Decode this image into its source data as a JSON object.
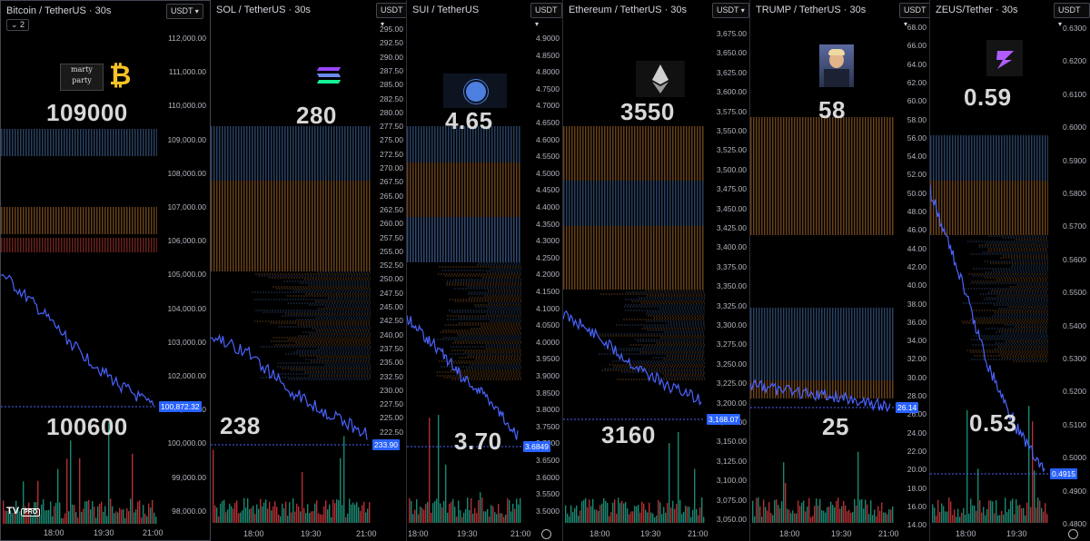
{
  "panels": [
    {
      "key": "btc",
      "title": "Bitcoin / TetherUS · 30s",
      "currency": "USDT",
      "collapse_label": "2",
      "ticks": [
        "112,000.00",
        "111,000.00",
        "110,000.00",
        "109,000.00",
        "108,000.00",
        "107,000.00",
        "106,000.00",
        "105,000.00",
        "104,000.00",
        "103,000.00",
        "102,000.00",
        "101,000.00",
        "100,000.00",
        "99,000.00",
        "98,000.00"
      ],
      "price_tag": "100,872.32",
      "upper_label": "109000",
      "lower_label": "100600",
      "times": [
        "18:00",
        "19:30",
        "21:00"
      ],
      "logo_text": "marty party",
      "watermark": "TV PRO"
    },
    {
      "key": "sol",
      "title": "SOL / TetherUS · 30s",
      "currency": "USDT",
      "ticks": [
        "295.00",
        "292.50",
        "290.00",
        "287.50",
        "285.00",
        "282.50",
        "280.00",
        "277.50",
        "275.00",
        "272.50",
        "270.00",
        "267.50",
        "265.00",
        "262.50",
        "260.00",
        "257.50",
        "255.00",
        "252.50",
        "250.00",
        "247.50",
        "245.00",
        "242.50",
        "240.00",
        "237.50",
        "235.00",
        "232.50",
        "230.00",
        "227.50",
        "225.00",
        "222.50"
      ],
      "price_tag": "233.90",
      "upper_label": "280",
      "lower_label": "238",
      "times": [
        "18:00",
        "19:30",
        "21:00"
      ]
    },
    {
      "key": "sui",
      "title": "SUI / TetherUS",
      "currency": "USDT",
      "ticks": [
        "4.9000",
        "4.8500",
        "4.8000",
        "4.7500",
        "4.7000",
        "4.6500",
        "4.6000",
        "4.5500",
        "4.5000",
        "4.4500",
        "4.4000",
        "4.3500",
        "4.3000",
        "4.2500",
        "4.2000",
        "4.1500",
        "4.1000",
        "4.0500",
        "4.0000",
        "3.9500",
        "3.9000",
        "3.8500",
        "3.8000",
        "3.7500",
        "3.7000",
        "3.6500",
        "3.6000",
        "3.5500",
        "3.5000"
      ],
      "price_tag": "3.6849",
      "upper_label": "4.65",
      "lower_label": "3.70",
      "times": [
        "18:00",
        "19:30",
        "21:00"
      ]
    },
    {
      "key": "eth",
      "title": "Ethereum / TetherUS · 30s",
      "currency": "USDT",
      "ticks": [
        "3,675.00",
        "3,650.00",
        "3,625.00",
        "3,600.00",
        "3,575.00",
        "3,550.00",
        "3,525.00",
        "3,500.00",
        "3,475.00",
        "3,450.00",
        "3,425.00",
        "3,400.00",
        "3,375.00",
        "3,350.00",
        "3,325.00",
        "3,300.00",
        "3,275.00",
        "3,250.00",
        "3,225.00",
        "3,200.00",
        "3,175.00",
        "3,150.00",
        "3,125.00",
        "3,100.00",
        "3,075.00",
        "3,050.00"
      ],
      "price_tag": "3,168.07",
      "upper_label": "3550",
      "lower_label": "3160",
      "times": [
        "18:00",
        "19:30",
        "21:00"
      ]
    },
    {
      "key": "trump",
      "title": "TRUMP / TetherUS · 30s",
      "currency": "USDT",
      "ticks": [
        "68.00",
        "66.00",
        "64.00",
        "62.00",
        "60.00",
        "58.00",
        "56.00",
        "54.00",
        "52.00",
        "50.00",
        "48.00",
        "46.00",
        "44.00",
        "42.00",
        "40.00",
        "38.00",
        "36.00",
        "34.00",
        "32.00",
        "30.00",
        "28.00",
        "26.00",
        "24.00",
        "22.00",
        "20.00",
        "18.00",
        "16.00",
        "14.00"
      ],
      "price_tag": "26.14",
      "upper_label": "58",
      "lower_label": "25",
      "times": [
        "18:00",
        "19:30",
        "21:00"
      ]
    },
    {
      "key": "zeus",
      "title": "ZEUS/Tether · 30s",
      "currency": "USDT",
      "ticks": [
        "0.6300",
        "0.6200",
        "0.6100",
        "0.6000",
        "0.5900",
        "0.5800",
        "0.5700",
        "0.5600",
        "0.5500",
        "0.5400",
        "0.5300",
        "0.5200",
        "0.5100",
        "0.5000",
        "0.4900",
        "0.4800"
      ],
      "price_tag": "0.4915",
      "upper_label": "0.59",
      "lower_label": "0.53",
      "times": [
        "18:00",
        "19:30"
      ]
    }
  ],
  "colors": {
    "price_line": "#4a63ff",
    "blue_band": "#5b8fd9",
    "orange_band": "#e8913a",
    "red_band": "#e84a3a",
    "volume_green": "#1e9f85",
    "volume_red": "#d2373c",
    "tag_bg": "#2962ff"
  },
  "icons": [
    "bitcoin-icon",
    "solana-icon",
    "sui-icon",
    "ethereum-icon",
    "trump-avatar-icon",
    "zeus-icon",
    "settings-icon"
  ]
}
